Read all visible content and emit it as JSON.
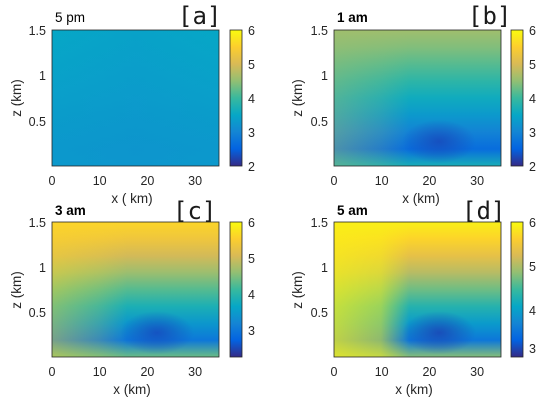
{
  "chart_data": [
    {
      "type": "heatmap",
      "panel": "[a]",
      "title": "5 pm",
      "title_bold": false,
      "xlabel": "x ( km)",
      "ylabel": "z (km)",
      "xlim": [
        0,
        35
      ],
      "ylim": [
        0,
        1.5
      ],
      "xticks": [
        "0",
        "10",
        "20",
        "30"
      ],
      "yticks": [
        "0.5",
        "1",
        "1.5"
      ],
      "colorbar": {
        "range": [
          2,
          6
        ],
        "ticks": [
          "2",
          "3",
          "4",
          "5",
          "6"
        ],
        "colormap": "parula"
      },
      "value_range": [
        3.0,
        3.5
      ]
    },
    {
      "type": "heatmap",
      "panel": "[b]",
      "title": "1 am",
      "title_bold": true,
      "xlabel": "x (km)",
      "ylabel": "z (km)",
      "xlim": [
        0,
        35
      ],
      "ylim": [
        0,
        1.5
      ],
      "xticks": [
        "0",
        "10",
        "20",
        "30"
      ],
      "yticks": [
        "0.5",
        "1",
        "1.5"
      ],
      "colorbar": {
        "range": [
          2,
          6
        ],
        "ticks": [
          "2",
          "3",
          "4",
          "5",
          "6"
        ],
        "colormap": "parula"
      },
      "value_range": [
        2.3,
        4.6
      ]
    },
    {
      "type": "heatmap",
      "panel": "[c]",
      "title": "3 am",
      "title_bold": true,
      "xlabel": "x (km)",
      "ylabel": "z (km)",
      "xlim": [
        0,
        35
      ],
      "ylim": [
        0,
        1.5
      ],
      "xticks": [
        "0",
        "10",
        "20",
        "30"
      ],
      "yticks": [
        "0.5",
        "1",
        "1.5"
      ],
      "colorbar": {
        "range": [
          2.2,
          6
        ],
        "ticks": [
          "3",
          "4",
          "5",
          "6"
        ],
        "colormap": "parula"
      },
      "value_range": [
        2.5,
        5.6
      ]
    },
    {
      "type": "heatmap",
      "panel": "[d]",
      "title": "5 am",
      "title_bold": true,
      "xlabel": "x (km)",
      "ylabel": "z (km)",
      "xlim": [
        0,
        35
      ],
      "ylim": [
        0,
        1.5
      ],
      "xticks": [
        "0",
        "10",
        "20",
        "30"
      ],
      "yticks": [
        "0.5",
        "1",
        "1.5"
      ],
      "colorbar": {
        "range": [
          3,
          6
        ],
        "ticks": [
          "3",
          "4",
          "5",
          "6"
        ],
        "colormap": "parula"
      },
      "value_range": [
        3.2,
        5.9
      ]
    }
  ],
  "colors": {
    "parula": [
      "#352a87",
      "#0363e1",
      "#1485d4",
      "#06a7c6",
      "#38b99e",
      "#92bf73",
      "#d9ba56",
      "#fcce2e",
      "#f9fb0e"
    ]
  }
}
